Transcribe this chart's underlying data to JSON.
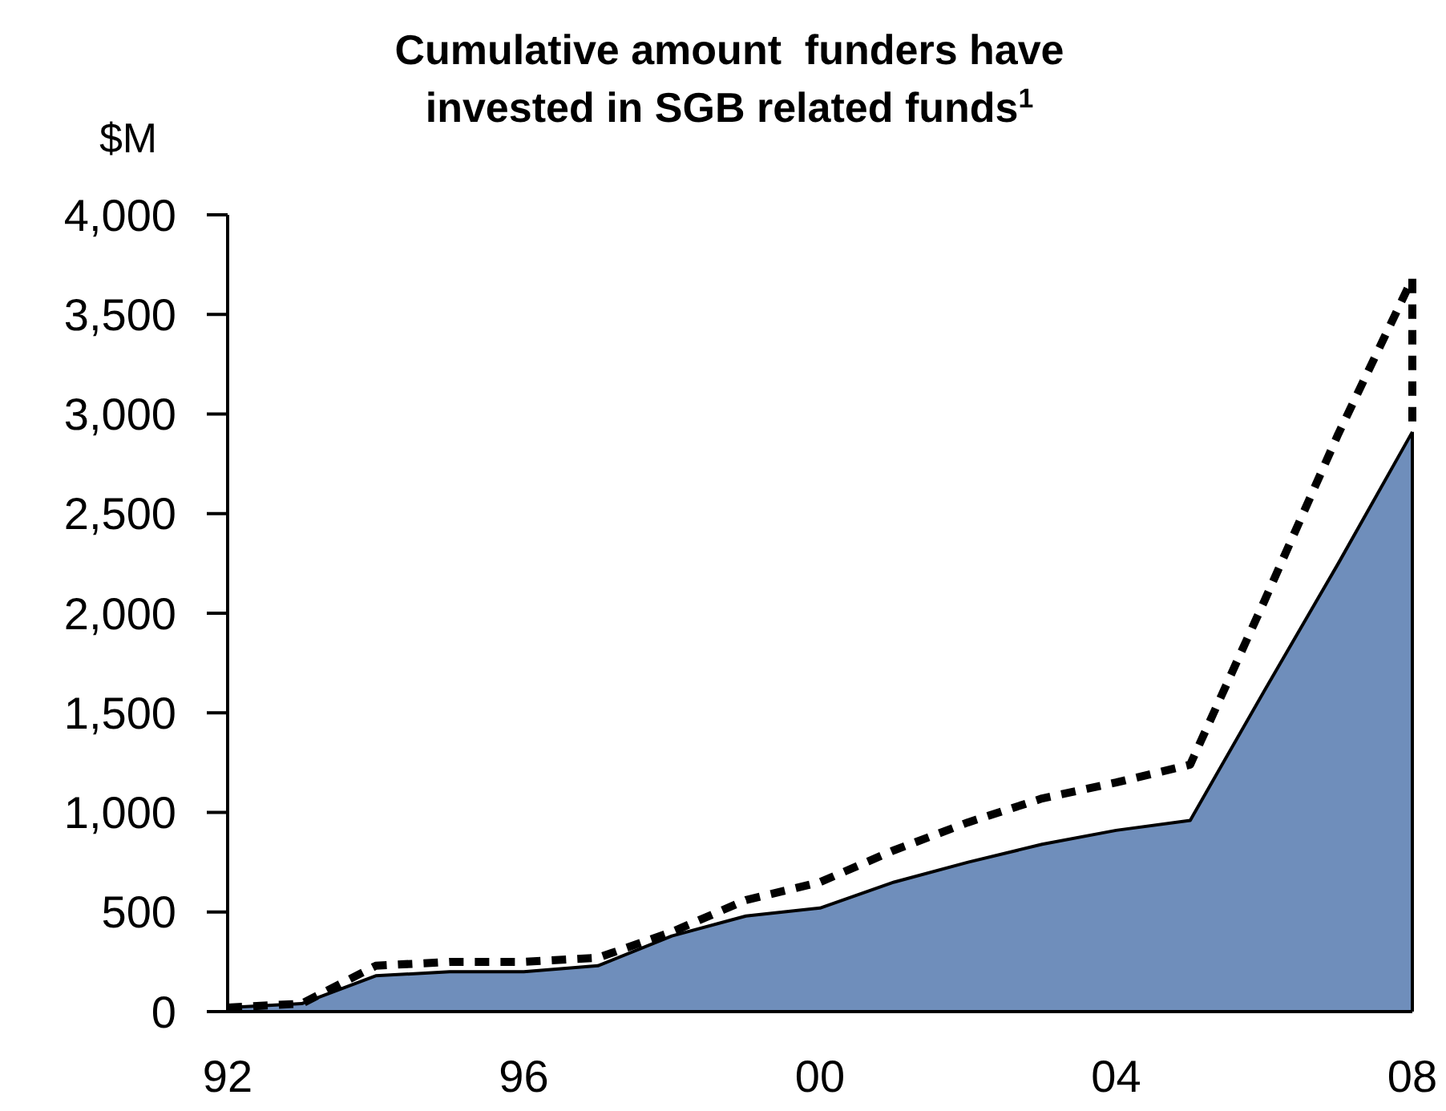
{
  "chart_data": {
    "type": "area",
    "title": "Cumulative amount  funders have invested in SGB related funds$^{1}$",
    "ylabel": "$M",
    "x": [
      1992,
      1993,
      1994,
      1995,
      1996,
      1997,
      1998,
      1999,
      2000,
      2001,
      2002,
      2003,
      2004,
      2005,
      2006,
      2007,
      2008
    ],
    "series": [
      {
        "color": "#6f8ebb",
        "line_style": "solid",
        "values": [
          20,
          40,
          180,
          200,
          200,
          230,
          380,
          480,
          520,
          650,
          750,
          840,
          910,
          960,
          1610,
          2250,
          2910
        ]
      },
      {
        "type": "line",
        "color": "#000000",
        "line_style": "dashed",
        "x": [
          1992,
          1993,
          1994,
          1995,
          1996,
          1997,
          1998,
          1999,
          2000,
          2001,
          2002,
          2003,
          2004,
          2005,
          2006,
          2007,
          2008,
          2008
        ],
        "values": [
          20,
          40,
          230,
          250,
          250,
          270,
          400,
          560,
          650,
          810,
          950,
          1070,
          1150,
          1240,
          2060,
          2900,
          3680,
          2910
        ]
      }
    ],
    "xlim": [
      1992,
      2008
    ],
    "xticks": [
      {
        "value": 1992,
        "label": "92"
      },
      {
        "value": 1996,
        "label": "96"
      },
      {
        "value": 2000,
        "label": "00"
      },
      {
        "value": 2004,
        "label": "04"
      },
      {
        "value": 2008,
        "label": "08"
      }
    ],
    "ylim": [
      0,
      4000
    ],
    "yticks": [
      {
        "value": 0,
        "label": "0"
      },
      {
        "value": 500,
        "label": "500"
      },
      {
        "value": 1000,
        "label": "1,000"
      },
      {
        "value": 1500,
        "label": "1,500"
      },
      {
        "value": 2000,
        "label": "2,000"
      },
      {
        "value": 2500,
        "label": "2,500"
      },
      {
        "value": 3000,
        "label": "3,000"
      },
      {
        "value": 3500,
        "label": "3,500"
      },
      {
        "value": 4000,
        "label": "4,000"
      }
    ],
    "grid": false
  }
}
